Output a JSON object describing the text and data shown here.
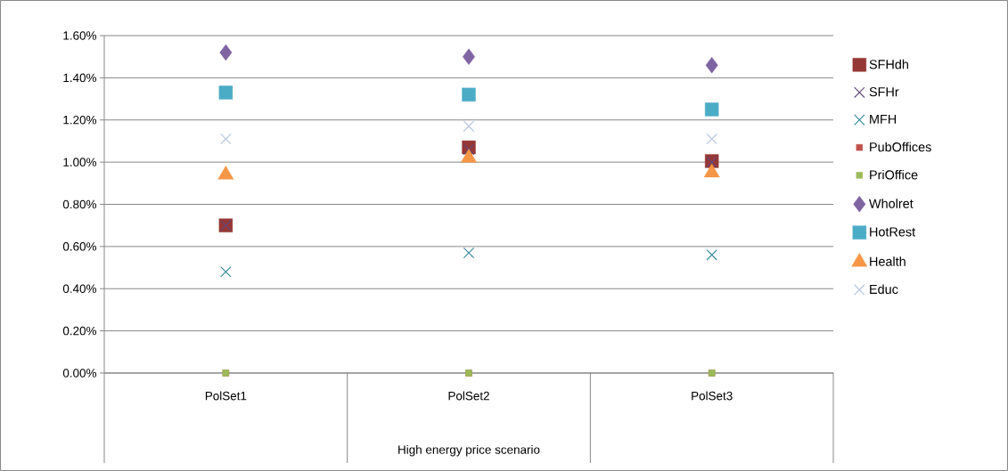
{
  "chart_data": {
    "type": "scatter",
    "xlabel": "High energy price scenario",
    "categories": [
      "PolSet1",
      "PolSet2",
      "PolSet3"
    ],
    "ylim": [
      0,
      1.6
    ],
    "yticks": [
      {
        "value": 0,
        "label": "0.00%"
      },
      {
        "value": 0.2,
        "label": "0.20%"
      },
      {
        "value": 0.4,
        "label": "0.40%"
      },
      {
        "value": 0.6,
        "label": "0.60%"
      },
      {
        "value": 0.8,
        "label": "0.80%"
      },
      {
        "value": 1.0,
        "label": "1.00%"
      },
      {
        "value": 1.2,
        "label": "1.20%"
      },
      {
        "value": 1.4,
        "label": "1.40%"
      },
      {
        "value": 1.6,
        "label": "1.60%"
      }
    ],
    "grid": "y",
    "legend": "right",
    "series": [
      {
        "name": "SFHdh",
        "color": "#953735",
        "marker": "square",
        "values": [
          0.7,
          1.07,
          1.005
        ]
      },
      {
        "name": "SFHr",
        "color": "#604a7b",
        "marker": "cross",
        "values": [
          0.7,
          1.06,
          1.0
        ]
      },
      {
        "name": "MFH",
        "color": "#31859c",
        "marker": "cross",
        "values": [
          0.48,
          0.57,
          0.56
        ]
      },
      {
        "name": "PubOffices",
        "color": "#c0504d",
        "marker": "square",
        "values": [
          0,
          0,
          0
        ]
      },
      {
        "name": "PriOffice",
        "color": "#9bbb59",
        "marker": "square",
        "values": [
          0,
          0,
          0
        ]
      },
      {
        "name": "Wholret",
        "color": "#8064a2",
        "marker": "diamond",
        "values": [
          1.52,
          1.5,
          1.46
        ]
      },
      {
        "name": "HotRest",
        "color": "#4bacc6",
        "marker": "square",
        "values": [
          1.33,
          1.32,
          1.25
        ]
      },
      {
        "name": "Health",
        "color": "#f79646",
        "marker": "triangle",
        "values": [
          0.94,
          1.02,
          0.95
        ]
      },
      {
        "name": "Educ",
        "color": "#b3c3de",
        "marker": "cross",
        "values": [
          1.11,
          1.17,
          1.11
        ]
      }
    ]
  }
}
